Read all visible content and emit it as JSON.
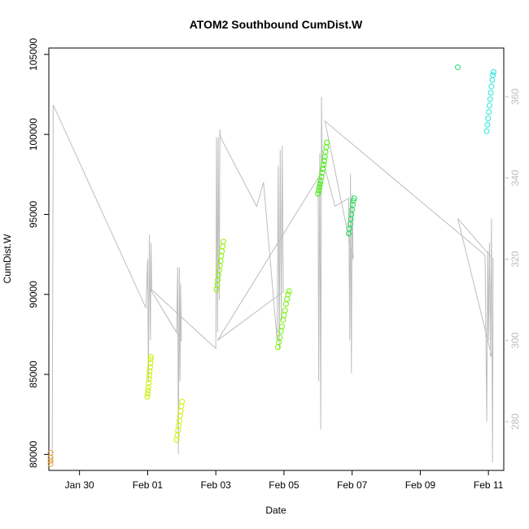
{
  "chart_data": {
    "type": "scatter",
    "title": "ATOM2 Southbound CumDist.W",
    "xlabel": "Date",
    "ylabel": "CumDist.W",
    "x_unit": "days (date axis)",
    "x_reference": "2024-01-28",
    "xlim_days": [
      1.1,
      14.45
    ],
    "ylim": [
      79000,
      105400
    ],
    "y2lim": [
      268,
      372
    ],
    "x_ticks": [
      {
        "label": "Jan 30",
        "day": 2
      },
      {
        "label": "Feb 01",
        "day": 4
      },
      {
        "label": "Feb 03",
        "day": 6
      },
      {
        "label": "Feb 05",
        "day": 8
      },
      {
        "label": "Feb 07",
        "day": 10
      },
      {
        "label": "Feb 09",
        "day": 12
      },
      {
        "label": "Feb 11",
        "day": 14
      }
    ],
    "y_ticks": [
      "80000",
      "85000",
      "90000",
      "95000",
      "100000",
      "105000"
    ],
    "y2_ticks": [
      "280",
      "300",
      "320",
      "340",
      "360"
    ],
    "grid": false,
    "legend": "none",
    "colors": {
      "line": "#bdbdbd",
      "axis": "#000000",
      "secondary_axis": "#bdbdbd"
    },
    "series": [
      {
        "color": "#e6a23c",
        "points": [
          [
            1.15,
            79400
          ],
          [
            1.15,
            79600
          ],
          [
            1.15,
            79800
          ],
          [
            1.15,
            80100
          ]
        ]
      },
      {
        "color": "#c8f000",
        "points": [
          [
            3.99,
            83600
          ],
          [
            4.0,
            83800
          ],
          [
            4.01,
            84000
          ],
          [
            4.02,
            84200
          ],
          [
            4.03,
            84450
          ],
          [
            4.04,
            84700
          ],
          [
            4.05,
            84950
          ],
          [
            4.06,
            85200
          ],
          [
            4.07,
            85450
          ],
          [
            4.08,
            85700
          ],
          [
            4.09,
            85950
          ],
          [
            4.1,
            86100
          ]
        ]
      },
      {
        "color": "#d4f000",
        "points": [
          [
            4.85,
            80900
          ],
          [
            4.87,
            81200
          ],
          [
            4.89,
            81500
          ],
          [
            4.91,
            81800
          ],
          [
            4.93,
            82100
          ],
          [
            4.95,
            82400
          ],
          [
            4.97,
            82700
          ],
          [
            4.99,
            83000
          ],
          [
            5.01,
            83300
          ]
        ]
      },
      {
        "color": "#8cf000",
        "points": [
          [
            6.02,
            90300
          ],
          [
            6.04,
            90600
          ],
          [
            6.06,
            90900
          ],
          [
            6.08,
            91200
          ],
          [
            6.1,
            91500
          ],
          [
            6.12,
            91800
          ],
          [
            6.14,
            92100
          ],
          [
            6.16,
            92400
          ],
          [
            6.18,
            92700
          ],
          [
            6.2,
            93000
          ],
          [
            6.22,
            93300
          ]
        ]
      },
      {
        "color": "#6ef000",
        "points": [
          [
            7.82,
            86700
          ],
          [
            7.85,
            87000
          ],
          [
            7.88,
            87300
          ],
          [
            7.91,
            87700
          ],
          [
            7.94,
            88000
          ],
          [
            7.97,
            88400
          ],
          [
            8.0,
            88700
          ],
          [
            8.03,
            89000
          ],
          [
            8.06,
            89400
          ],
          [
            8.09,
            89700
          ],
          [
            8.12,
            90000
          ],
          [
            8.15,
            90200
          ]
        ]
      },
      {
        "color": "#3cf000",
        "points": [
          [
            9.0,
            96300
          ],
          [
            9.02,
            96500
          ],
          [
            9.04,
            96700
          ],
          [
            9.06,
            96900
          ],
          [
            9.08,
            97100
          ],
          [
            9.1,
            97350
          ],
          [
            9.12,
            97600
          ],
          [
            9.14,
            97850
          ],
          [
            9.16,
            98100
          ],
          [
            9.18,
            98350
          ],
          [
            9.2,
            98600
          ],
          [
            9.22,
            98900
          ],
          [
            9.24,
            99200
          ],
          [
            9.26,
            99500
          ]
        ]
      },
      {
        "color": "#14e050",
        "points": [
          [
            9.9,
            93800
          ],
          [
            9.92,
            94100
          ],
          [
            9.94,
            94400
          ],
          [
            9.96,
            94700
          ],
          [
            9.98,
            95000
          ],
          [
            10.0,
            95300
          ],
          [
            10.02,
            95600
          ],
          [
            10.04,
            95850
          ],
          [
            10.06,
            96000
          ]
        ]
      },
      {
        "color": "#20e070",
        "points": [
          [
            13.1,
            104200
          ]
        ]
      },
      {
        "color": "#20e8d8",
        "points": [
          [
            13.95,
            100200
          ],
          [
            13.97,
            100600
          ],
          [
            13.99,
            101000
          ],
          [
            14.01,
            101400
          ],
          [
            14.03,
            101800
          ],
          [
            14.05,
            102200
          ],
          [
            14.07,
            102600
          ],
          [
            14.09,
            103000
          ],
          [
            14.11,
            103400
          ],
          [
            14.13,
            103700
          ],
          [
            14.15,
            103900
          ]
        ]
      }
    ],
    "line_secondary_axis": [
      [
        1.2,
        270
      ],
      [
        1.23,
        358
      ],
      [
        3.95,
        308
      ],
      [
        4.0,
        320
      ],
      [
        4.02,
        290
      ],
      [
        4.05,
        326
      ],
      [
        4.08,
        300
      ],
      [
        4.1,
        324
      ],
      [
        4.12,
        312
      ],
      [
        4.85,
        302
      ],
      [
        4.88,
        318
      ],
      [
        4.9,
        272
      ],
      [
        4.93,
        318
      ],
      [
        4.95,
        290
      ],
      [
        4.97,
        314
      ],
      [
        4.99,
        300
      ],
      [
        4.05,
        313
      ],
      [
        6.0,
        298
      ],
      [
        6.02,
        350
      ],
      [
        6.05,
        302
      ],
      [
        6.07,
        350
      ],
      [
        6.1,
        310
      ],
      [
        6.12,
        352
      ],
      [
        6.14,
        350
      ],
      [
        7.2,
        333
      ],
      [
        7.4,
        339
      ],
      [
        7.8,
        300
      ],
      [
        7.83,
        343
      ],
      [
        7.86,
        298
      ],
      [
        7.89,
        347
      ],
      [
        7.92,
        305
      ],
      [
        7.95,
        348
      ],
      [
        7.98,
        312
      ],
      [
        6.05,
        300
      ],
      [
        9.0,
        340
      ],
      [
        9.02,
        290
      ],
      [
        9.05,
        346
      ],
      [
        9.08,
        278
      ],
      [
        9.1,
        360
      ],
      [
        9.12,
        345
      ],
      [
        9.5,
        333
      ],
      [
        9.9,
        335
      ],
      [
        9.93,
        300
      ],
      [
        9.95,
        341
      ],
      [
        9.98,
        292
      ],
      [
        10.0,
        336
      ],
      [
        10.03,
        320
      ],
      [
        9.2,
        354
      ],
      [
        13.9,
        321
      ],
      [
        13.95,
        280
      ],
      [
        13.98,
        322
      ],
      [
        14.0,
        300
      ],
      [
        14.03,
        324
      ],
      [
        14.06,
        296
      ],
      [
        14.09,
        330
      ],
      [
        14.12,
        270
      ],
      [
        14.14,
        320
      ],
      [
        13.1,
        330
      ],
      [
        14.1,
        296
      ]
    ]
  }
}
